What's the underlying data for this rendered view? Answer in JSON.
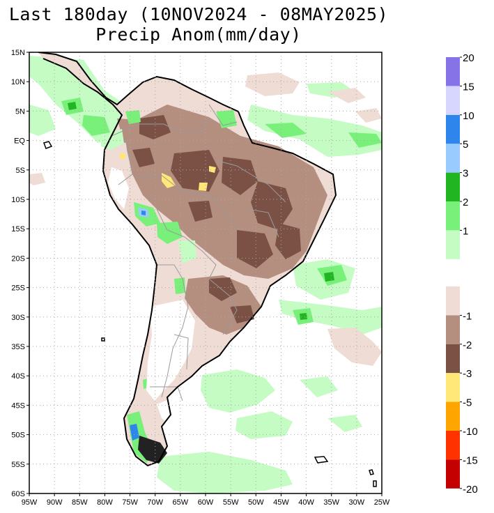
{
  "title_line1": "Last 180day (10NOV2024 - 08MAY2025)",
  "title_line2": "Precip Anom(mm/day)",
  "lat_labels": [
    "15N",
    "10N",
    "5N",
    "EQ",
    "5S",
    "10S",
    "15S",
    "20S",
    "25S",
    "30S",
    "35S",
    "40S",
    "45S",
    "50S",
    "55S",
    "60S"
  ],
  "lon_labels": [
    "95W",
    "90W",
    "85W",
    "80W",
    "75W",
    "70W",
    "65W",
    "60W",
    "55W",
    "50W",
    "45W",
    "40W",
    "35W",
    "30W",
    "25W"
  ],
  "map_extent": {
    "lon": [
      -95,
      -25
    ],
    "lat": [
      -60,
      15
    ]
  },
  "positive_scale": {
    "colors": [
      "#c4fcc4",
      "#79f079",
      "#22b522",
      "#99cbff",
      "#2e85eb",
      "#d6d6ff",
      "#8773e8"
    ],
    "labels": [
      "1",
      "2",
      "3",
      "5",
      "10",
      "15",
      "20"
    ]
  },
  "negative_scale": {
    "colors": [
      "#efdcd4",
      "#b48e7e",
      "#7a5144",
      "#ffe878",
      "#ffa500",
      "#ff3200",
      "#c40000"
    ],
    "labels": [
      "-1",
      "-2",
      "-3",
      "-5",
      "-10",
      "-15",
      "-20"
    ]
  },
  "colors": {
    "land_outline": "#000000",
    "border": "#9a9a9a",
    "grid": "#a8a8a8"
  }
}
